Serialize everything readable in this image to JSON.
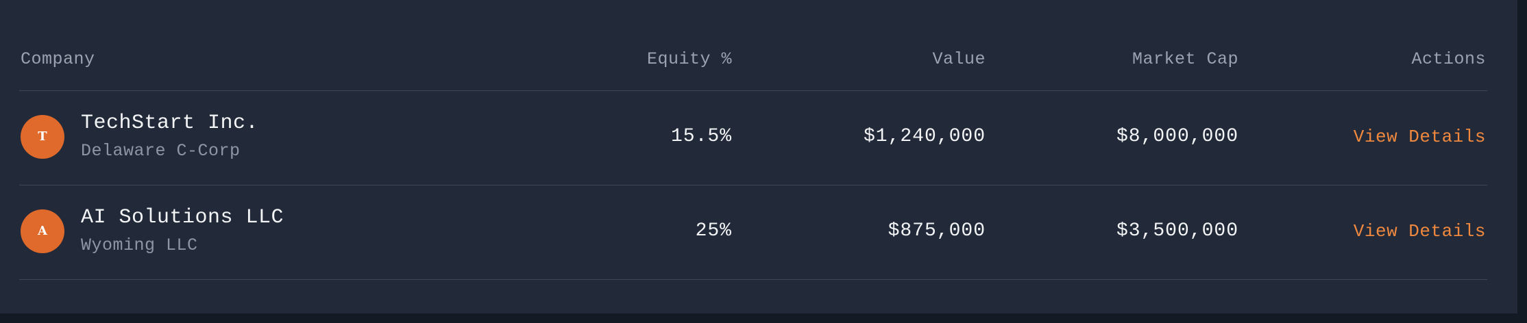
{
  "table": {
    "headers": {
      "company": "Company",
      "equity": "Equity %",
      "value": "Value",
      "market_cap": "Market Cap",
      "actions": "Actions"
    },
    "rows": [
      {
        "avatar": "T",
        "name": "TechStart Inc.",
        "entity_type": "Delaware C-Corp",
        "equity": "15.5%",
        "value": "$1,240,000",
        "market_cap": "$8,000,000",
        "action_label": "View Details"
      },
      {
        "avatar": "A",
        "name": "AI Solutions LLC",
        "entity_type": "Wyoming LLC",
        "equity": "25%",
        "value": "$875,000",
        "market_cap": "$3,500,000",
        "action_label": "View Details"
      }
    ]
  },
  "colors": {
    "background": "#222938",
    "accent": "#f0893f",
    "avatar": "#e06a2c"
  }
}
